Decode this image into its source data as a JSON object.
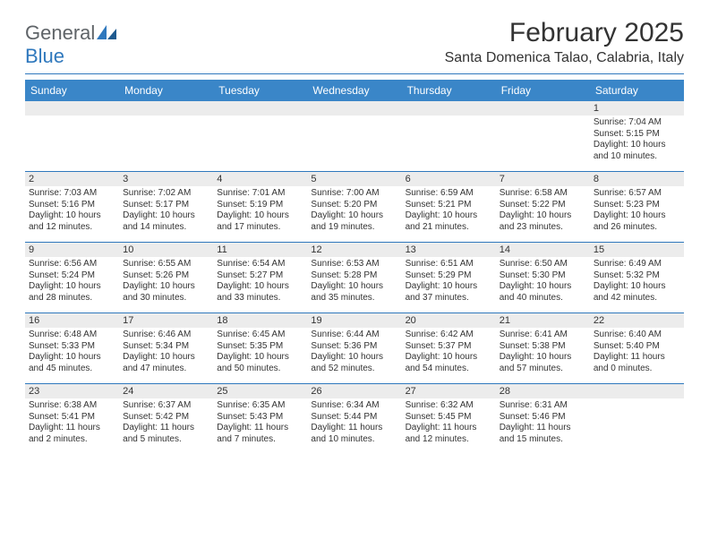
{
  "logo": {
    "text1": "General",
    "text2": "Blue"
  },
  "title": "February 2025",
  "location": "Santa Domenica Talao, Calabria, Italy",
  "colors": {
    "header_bar": "#3a86c8",
    "divider": "#2f78bd",
    "daynum_bg": "#ececec",
    "text": "#333333",
    "logo_gray": "#5f6468",
    "logo_blue": "#2f78bd"
  },
  "day_headers": [
    "Sunday",
    "Monday",
    "Tuesday",
    "Wednesday",
    "Thursday",
    "Friday",
    "Saturday"
  ],
  "weeks": [
    [
      {
        "n": "",
        "sr": "",
        "ss": "",
        "dl": ""
      },
      {
        "n": "",
        "sr": "",
        "ss": "",
        "dl": ""
      },
      {
        "n": "",
        "sr": "",
        "ss": "",
        "dl": ""
      },
      {
        "n": "",
        "sr": "",
        "ss": "",
        "dl": ""
      },
      {
        "n": "",
        "sr": "",
        "ss": "",
        "dl": ""
      },
      {
        "n": "",
        "sr": "",
        "ss": "",
        "dl": ""
      },
      {
        "n": "1",
        "sr": "Sunrise: 7:04 AM",
        "ss": "Sunset: 5:15 PM",
        "dl": "Daylight: 10 hours and 10 minutes."
      }
    ],
    [
      {
        "n": "2",
        "sr": "Sunrise: 7:03 AM",
        "ss": "Sunset: 5:16 PM",
        "dl": "Daylight: 10 hours and 12 minutes."
      },
      {
        "n": "3",
        "sr": "Sunrise: 7:02 AM",
        "ss": "Sunset: 5:17 PM",
        "dl": "Daylight: 10 hours and 14 minutes."
      },
      {
        "n": "4",
        "sr": "Sunrise: 7:01 AM",
        "ss": "Sunset: 5:19 PM",
        "dl": "Daylight: 10 hours and 17 minutes."
      },
      {
        "n": "5",
        "sr": "Sunrise: 7:00 AM",
        "ss": "Sunset: 5:20 PM",
        "dl": "Daylight: 10 hours and 19 minutes."
      },
      {
        "n": "6",
        "sr": "Sunrise: 6:59 AM",
        "ss": "Sunset: 5:21 PM",
        "dl": "Daylight: 10 hours and 21 minutes."
      },
      {
        "n": "7",
        "sr": "Sunrise: 6:58 AM",
        "ss": "Sunset: 5:22 PM",
        "dl": "Daylight: 10 hours and 23 minutes."
      },
      {
        "n": "8",
        "sr": "Sunrise: 6:57 AM",
        "ss": "Sunset: 5:23 PM",
        "dl": "Daylight: 10 hours and 26 minutes."
      }
    ],
    [
      {
        "n": "9",
        "sr": "Sunrise: 6:56 AM",
        "ss": "Sunset: 5:24 PM",
        "dl": "Daylight: 10 hours and 28 minutes."
      },
      {
        "n": "10",
        "sr": "Sunrise: 6:55 AM",
        "ss": "Sunset: 5:26 PM",
        "dl": "Daylight: 10 hours and 30 minutes."
      },
      {
        "n": "11",
        "sr": "Sunrise: 6:54 AM",
        "ss": "Sunset: 5:27 PM",
        "dl": "Daylight: 10 hours and 33 minutes."
      },
      {
        "n": "12",
        "sr": "Sunrise: 6:53 AM",
        "ss": "Sunset: 5:28 PM",
        "dl": "Daylight: 10 hours and 35 minutes."
      },
      {
        "n": "13",
        "sr": "Sunrise: 6:51 AM",
        "ss": "Sunset: 5:29 PM",
        "dl": "Daylight: 10 hours and 37 minutes."
      },
      {
        "n": "14",
        "sr": "Sunrise: 6:50 AM",
        "ss": "Sunset: 5:30 PM",
        "dl": "Daylight: 10 hours and 40 minutes."
      },
      {
        "n": "15",
        "sr": "Sunrise: 6:49 AM",
        "ss": "Sunset: 5:32 PM",
        "dl": "Daylight: 10 hours and 42 minutes."
      }
    ],
    [
      {
        "n": "16",
        "sr": "Sunrise: 6:48 AM",
        "ss": "Sunset: 5:33 PM",
        "dl": "Daylight: 10 hours and 45 minutes."
      },
      {
        "n": "17",
        "sr": "Sunrise: 6:46 AM",
        "ss": "Sunset: 5:34 PM",
        "dl": "Daylight: 10 hours and 47 minutes."
      },
      {
        "n": "18",
        "sr": "Sunrise: 6:45 AM",
        "ss": "Sunset: 5:35 PM",
        "dl": "Daylight: 10 hours and 50 minutes."
      },
      {
        "n": "19",
        "sr": "Sunrise: 6:44 AM",
        "ss": "Sunset: 5:36 PM",
        "dl": "Daylight: 10 hours and 52 minutes."
      },
      {
        "n": "20",
        "sr": "Sunrise: 6:42 AM",
        "ss": "Sunset: 5:37 PM",
        "dl": "Daylight: 10 hours and 54 minutes."
      },
      {
        "n": "21",
        "sr": "Sunrise: 6:41 AM",
        "ss": "Sunset: 5:38 PM",
        "dl": "Daylight: 10 hours and 57 minutes."
      },
      {
        "n": "22",
        "sr": "Sunrise: 6:40 AM",
        "ss": "Sunset: 5:40 PM",
        "dl": "Daylight: 11 hours and 0 minutes."
      }
    ],
    [
      {
        "n": "23",
        "sr": "Sunrise: 6:38 AM",
        "ss": "Sunset: 5:41 PM",
        "dl": "Daylight: 11 hours and 2 minutes."
      },
      {
        "n": "24",
        "sr": "Sunrise: 6:37 AM",
        "ss": "Sunset: 5:42 PM",
        "dl": "Daylight: 11 hours and 5 minutes."
      },
      {
        "n": "25",
        "sr": "Sunrise: 6:35 AM",
        "ss": "Sunset: 5:43 PM",
        "dl": "Daylight: 11 hours and 7 minutes."
      },
      {
        "n": "26",
        "sr": "Sunrise: 6:34 AM",
        "ss": "Sunset: 5:44 PM",
        "dl": "Daylight: 11 hours and 10 minutes."
      },
      {
        "n": "27",
        "sr": "Sunrise: 6:32 AM",
        "ss": "Sunset: 5:45 PM",
        "dl": "Daylight: 11 hours and 12 minutes."
      },
      {
        "n": "28",
        "sr": "Sunrise: 6:31 AM",
        "ss": "Sunset: 5:46 PM",
        "dl": "Daylight: 11 hours and 15 minutes."
      },
      {
        "n": "",
        "sr": "",
        "ss": "",
        "dl": ""
      }
    ]
  ]
}
